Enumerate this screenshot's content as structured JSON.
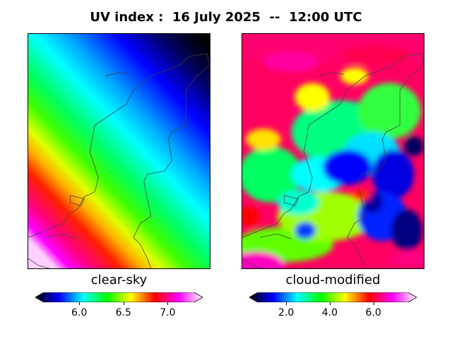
{
  "title": "UV index :  16 July 2025  --  12:00 UTC",
  "chart_data": [
    {
      "type": "heatmap",
      "title": "clear-sky",
      "variable": "UV index",
      "value_range": [
        5.6,
        7.3
      ],
      "colorbar_ticks": [
        "6.0",
        "6.5",
        "7.0"
      ],
      "colorbar_tick_values": [
        6.0,
        6.5,
        7.0
      ],
      "colormap": [
        "#000000",
        "#0000ff",
        "#00ffff",
        "#00ff00",
        "#ffff00",
        "#ff0000",
        "#ff00ff",
        "#ffffff"
      ],
      "colorbar_extend": "both",
      "gradient_direction": "increasing from north-east to south-west"
    },
    {
      "type": "heatmap",
      "title": "cloud-modified",
      "variable": "UV index",
      "value_range": [
        0.7,
        7.6
      ],
      "colorbar_ticks": [
        "2.0",
        "4.0",
        "6.0"
      ],
      "colorbar_tick_values": [
        2.0,
        4.0,
        6.0
      ],
      "colormap": [
        "#000000",
        "#0000ff",
        "#00ffff",
        "#00ff00",
        "#ffff00",
        "#ff0000",
        "#ff00ff",
        "#ffffff"
      ],
      "colorbar_extend": "both",
      "pattern": "patchy clouds, lowest values over eastern Netherlands"
    }
  ]
}
